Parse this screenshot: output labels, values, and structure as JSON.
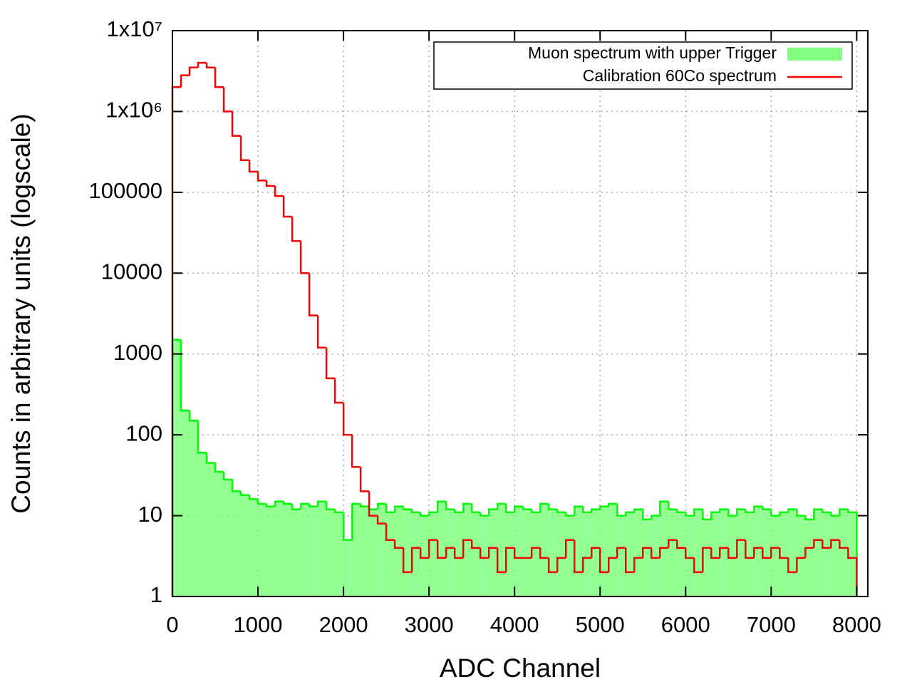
{
  "chart_data": {
    "type": "histogram",
    "xlabel": "ADC Channel",
    "ylabel": "Counts in arbitrary units (logscale)",
    "log_y": true,
    "grid": true,
    "legend": "top-right",
    "bins": [
      0,
      100,
      200,
      300,
      400,
      500,
      600,
      700,
      800,
      900,
      1000,
      1100,
      1200,
      1300,
      1400,
      1500,
      1600,
      1700,
      1800,
      1900,
      2000,
      2100,
      2200,
      2300,
      2400,
      2500,
      2600,
      2700,
      2800,
      2900,
      3000,
      3100,
      3200,
      3300,
      3400,
      3500,
      3600,
      3700,
      3800,
      3900,
      4000,
      4100,
      4200,
      4300,
      4400,
      4500,
      4600,
      4700,
      4800,
      4900,
      5000,
      5100,
      5200,
      5300,
      5400,
      5500,
      5600,
      5700,
      5800,
      5900,
      6000,
      6100,
      6200,
      6300,
      6400,
      6500,
      6600,
      6700,
      6800,
      6900,
      7000,
      7100,
      7200,
      7300,
      7400,
      7500,
      7600,
      7700,
      7800,
      7900,
      8000
    ],
    "series": [
      {
        "name": "Muon spectrum with upper Trigger",
        "color": "#00ff00",
        "fill": "#80ff80",
        "values": [
          1500,
          200,
          150,
          60,
          45,
          35,
          28,
          20,
          18,
          16,
          14,
          13,
          15,
          14,
          12,
          14,
          13,
          15,
          12,
          11,
          5,
          14,
          13,
          12,
          14,
          11,
          13,
          12,
          11,
          10,
          11,
          15,
          12,
          11,
          14,
          11,
          10,
          12,
          14,
          11,
          13,
          12,
          11,
          14,
          12,
          11,
          10,
          13,
          11,
          12,
          13,
          14,
          10,
          11,
          12,
          9,
          10,
          15,
          12,
          11,
          10,
          12,
          9,
          11,
          12,
          10,
          12,
          11,
          13,
          12,
          10,
          11,
          12,
          10,
          9,
          12,
          11,
          10,
          12,
          11
        ]
      },
      {
        "name": "Calibration 60Co spectrum",
        "color": "#ff0000",
        "values": [
          2000000,
          2800000,
          3500000,
          4000000,
          3500000,
          2000000,
          1000000,
          500000,
          250000,
          180000,
          140000,
          120000,
          90000,
          50000,
          25000,
          10000,
          3000,
          1200,
          500,
          250,
          100,
          40,
          20,
          10,
          8,
          5,
          4,
          2,
          4,
          3,
          5,
          3,
          4,
          3,
          5,
          4,
          3,
          4,
          2,
          4,
          3,
          3,
          4,
          3,
          2,
          3,
          5,
          2,
          3,
          4,
          2,
          3,
          4,
          2,
          3,
          4,
          3,
          4,
          5,
          4,
          3,
          2,
          4,
          3,
          4,
          3,
          5,
          3,
          4,
          3,
          4,
          3,
          2,
          3,
          4,
          5,
          4,
          5,
          4,
          3
        ]
      }
    ],
    "xlim": [
      0,
      8130
    ],
    "xticks": [
      0,
      1000,
      2000,
      3000,
      4000,
      5000,
      6000,
      7000,
      8000
    ],
    "ylim": [
      1,
      10000000
    ],
    "yticks": [
      1,
      10,
      100,
      1000,
      10000,
      100000,
      {
        "value": 1000000,
        "label": "1x10⁶"
      },
      {
        "value": 10000000,
        "label": "1x10⁷"
      }
    ]
  }
}
